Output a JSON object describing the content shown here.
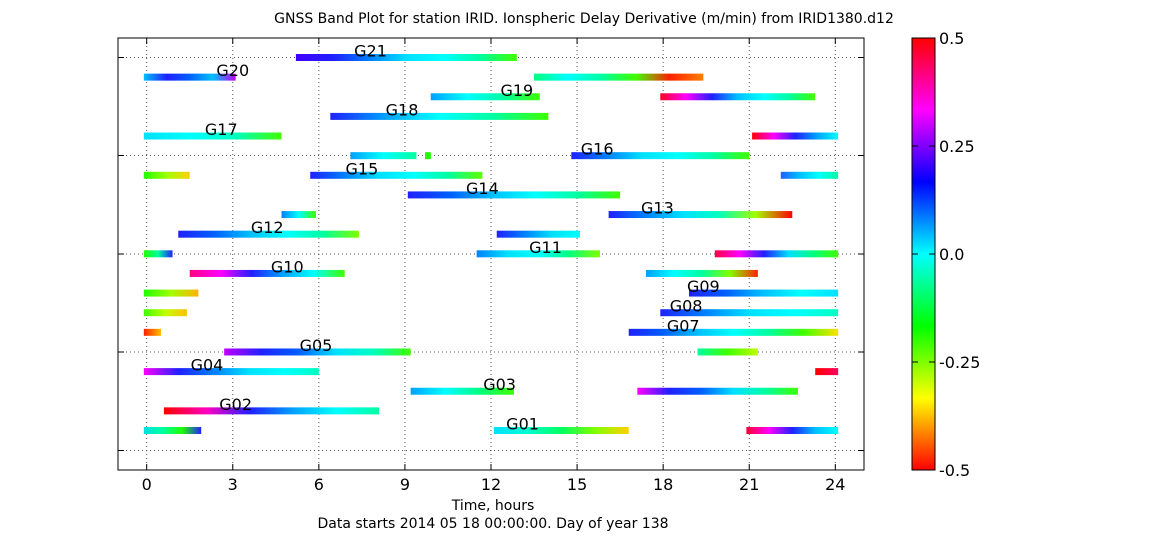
{
  "chart_data": {
    "type": "band",
    "title": "GNSS Band Plot for station IRID.   Ionspheric Delay Derivative (m/min) from IRID1380.d12",
    "xlabel": "Time, hours",
    "subtitle": "Data starts 2014 05 18 00:00:00.  Day of year 138",
    "xlim": [
      -1,
      25
    ],
    "xticks": [
      "0",
      "3",
      "6",
      "9",
      "12",
      "15",
      "18",
      "21",
      "24"
    ],
    "colorbar": {
      "range": [
        -0.5,
        0.5
      ],
      "ticks": [
        "0.5",
        "0.25",
        "0.0",
        "-0.25",
        "-0.5"
      ],
      "colormap": [
        "#ff0000",
        "#ffff00",
        "#00ff00",
        "#00ffff",
        "#0000ff",
        "#ff00ff",
        "#ff0000"
      ]
    },
    "satellites": [
      {
        "label": "G01",
        "label_at": 13.1,
        "passes": [
          {
            "start": -0.1,
            "end": 1.9,
            "colors": [
              "#00e0e0",
              "#00ffa0",
              "#20ff00",
              "#2020ff"
            ]
          },
          {
            "start": 12.1,
            "end": 16.8,
            "colors": [
              "#00e0ff",
              "#00ffd0",
              "#00ff60",
              "#80ff00",
              "#ffd000"
            ]
          },
          {
            "start": 20.9,
            "end": 24.1,
            "colors": [
              "#ff0030",
              "#ff00ff",
              "#2020ff",
              "#00c0ff",
              "#00ffff"
            ]
          }
        ]
      },
      {
        "label": "G02",
        "label_at": 3.1,
        "passes": [
          {
            "start": 0.6,
            "end": 8.1,
            "colors": [
              "#ff0000",
              "#ff00c0",
              "#2020ff",
              "#00a0ff",
              "#00ffff",
              "#00ffa0"
            ]
          }
        ]
      },
      {
        "label": "G03",
        "label_at": 12.3,
        "passes": [
          {
            "start": 9.2,
            "end": 12.8,
            "colors": [
              "#00a0ff",
              "#00ffff",
              "#00ff80",
              "#40ff00"
            ]
          },
          {
            "start": 17.1,
            "end": 22.7,
            "colors": [
              "#ff00ff",
              "#2020ff",
              "#0060ff",
              "#00e0ff",
              "#00ffa0",
              "#40ff00"
            ]
          }
        ]
      },
      {
        "label": "G04",
        "label_at": 2.1,
        "passes": [
          {
            "start": -0.1,
            "end": 6.0,
            "colors": [
              "#ff00ff",
              "#2020ff",
              "#0080ff",
              "#00e0ff",
              "#00ffff",
              "#00ffc0"
            ]
          },
          {
            "start": 23.3,
            "end": 24.1,
            "colors": [
              "#ff0000",
              "#ff0060"
            ]
          }
        ]
      },
      {
        "label": "G05",
        "label_at": 5.9,
        "passes": [
          {
            "start": 2.7,
            "end": 9.2,
            "colors": [
              "#c000ff",
              "#2020ff",
              "#0060ff",
              "#00e0ff",
              "#00ffc0",
              "#40ff00"
            ]
          },
          {
            "start": 19.2,
            "end": 21.3,
            "colors": [
              "#00ffa0",
              "#40ff00",
              "#c0ff00"
            ]
          }
        ]
      },
      {
        "label": "G07",
        "label_at": 18.7,
        "passes": [
          {
            "start": -0.1,
            "end": 0.5,
            "colors": [
              "#ff2000",
              "#ffc000"
            ]
          },
          {
            "start": 16.8,
            "end": 24.1,
            "colors": [
              "#2020ff",
              "#0060ff",
              "#00c0ff",
              "#00ffff",
              "#00ffa0",
              "#40ff00",
              "#ffe000"
            ]
          }
        ]
      },
      {
        "label": "G08",
        "label_at": 18.8,
        "passes": [
          {
            "start": -0.1,
            "end": 1.4,
            "colors": [
              "#40ff00",
              "#c0ff00",
              "#ffc000"
            ]
          },
          {
            "start": 17.9,
            "end": 24.1,
            "colors": [
              "#2020ff",
              "#0080ff",
              "#00e0ff",
              "#00ffff",
              "#00ffc0"
            ]
          }
        ]
      },
      {
        "label": "G09",
        "label_at": 19.4,
        "passes": [
          {
            "start": -0.1,
            "end": 1.8,
            "colors": [
              "#20ff00",
              "#a0ff00",
              "#ffb000"
            ]
          },
          {
            "start": 18.9,
            "end": 24.1,
            "colors": [
              "#2020ff",
              "#0060ff",
              "#00c0ff",
              "#00ffff",
              "#00e0ff"
            ]
          }
        ]
      },
      {
        "label": "G10",
        "label_at": 4.9,
        "passes": [
          {
            "start": 1.5,
            "end": 6.9,
            "colors": [
              "#ff0080",
              "#ff00ff",
              "#2020ff",
              "#00a0ff",
              "#00ffff",
              "#40ff00"
            ]
          },
          {
            "start": 17.4,
            "end": 21.3,
            "colors": [
              "#00a0ff",
              "#00ffff",
              "#00ffa0",
              "#80ff00",
              "#ff2000"
            ]
          }
        ]
      },
      {
        "label": "G11",
        "label_at": 13.9,
        "passes": [
          {
            "start": -0.1,
            "end": 0.9,
            "colors": [
              "#20ff00",
              "#00ffa0",
              "#2020ff"
            ]
          },
          {
            "start": 11.5,
            "end": 15.8,
            "colors": [
              "#0080ff",
              "#00e0ff",
              "#00ffff",
              "#00ff80",
              "#80ff00"
            ]
          },
          {
            "start": 19.8,
            "end": 24.1,
            "colors": [
              "#ff0040",
              "#ff00ff",
              "#2020ff",
              "#00e0ff",
              "#00ff80",
              "#40ff00"
            ]
          }
        ]
      },
      {
        "label": "G12",
        "label_at": 4.2,
        "passes": [
          {
            "start": 1.1,
            "end": 7.4,
            "colors": [
              "#2020ff",
              "#0060ff",
              "#00c0ff",
              "#00ffff",
              "#00ffa0",
              "#80ff00"
            ]
          },
          {
            "start": 12.2,
            "end": 15.1,
            "colors": [
              "#2020ff",
              "#0080ff",
              "#00e0ff",
              "#00ffff"
            ]
          }
        ]
      },
      {
        "label": "G13",
        "label_at": 17.8,
        "passes": [
          {
            "start": 4.7,
            "end": 5.9,
            "colors": [
              "#0080ff",
              "#00ffff",
              "#40ff00"
            ]
          },
          {
            "start": 16.1,
            "end": 22.5,
            "colors": [
              "#2020ff",
              "#0080ff",
              "#00e0ff",
              "#00ffc0",
              "#a0ff00",
              "#ff0000"
            ]
          }
        ]
      },
      {
        "label": "G14",
        "label_at": 11.7,
        "passes": [
          {
            "start": 9.1,
            "end": 16.5,
            "colors": [
              "#2020ff",
              "#0060ff",
              "#00c0ff",
              "#00ffff",
              "#00ffa0",
              "#40ff00"
            ]
          }
        ]
      },
      {
        "label": "G15",
        "label_at": 7.5,
        "passes": [
          {
            "start": -0.1,
            "end": 1.5,
            "colors": [
              "#20ff00",
              "#a0ff00",
              "#ffd000"
            ]
          },
          {
            "start": 5.7,
            "end": 11.7,
            "colors": [
              "#2020ff",
              "#0080ff",
              "#00e0ff",
              "#00ffff",
              "#00ffa0",
              "#60ff00"
            ]
          },
          {
            "start": 22.1,
            "end": 24.1,
            "colors": [
              "#2060ff",
              "#00c0ff",
              "#00ffff",
              "#00ffa0"
            ]
          }
        ]
      },
      {
        "label": "G16",
        "label_at": 15.7,
        "passes": [
          {
            "start": 7.1,
            "end": 9.4,
            "colors": [
              "#00a0ff",
              "#00ffff",
              "#00ffa0"
            ]
          },
          {
            "start": 9.7,
            "end": 9.9,
            "colors": [
              "#20ff00"
            ]
          },
          {
            "start": 14.8,
            "end": 21.0,
            "colors": [
              "#2020ff",
              "#0080ff",
              "#00e0ff",
              "#00ffff",
              "#00ffa0",
              "#40ff00"
            ]
          }
        ]
      },
      {
        "label": "G17",
        "label_at": 2.6,
        "passes": [
          {
            "start": -0.1,
            "end": 4.7,
            "colors": [
              "#00e0ff",
              "#00ffff",
              "#00ffc0",
              "#40ff00"
            ]
          },
          {
            "start": 21.1,
            "end": 24.1,
            "colors": [
              "#ff0000",
              "#ff00ff",
              "#2020ff",
              "#00a0ff",
              "#00ffff"
            ]
          }
        ]
      },
      {
        "label": "G18",
        "label_at": 8.9,
        "passes": [
          {
            "start": 6.4,
            "end": 14.0,
            "colors": [
              "#2020ff",
              "#00a0ff",
              "#00ffff",
              "#00ffa0",
              "#40ff00"
            ]
          }
        ]
      },
      {
        "label": "G19",
        "label_at": 12.9,
        "passes": [
          {
            "start": 9.9,
            "end": 13.7,
            "colors": [
              "#00a0ff",
              "#00ffff",
              "#00ffa0",
              "#40ff00"
            ]
          },
          {
            "start": 17.9,
            "end": 23.3,
            "colors": [
              "#ff0020",
              "#ff00ff",
              "#2020ff",
              "#00c0ff",
              "#00ffff",
              "#00ffa0",
              "#40ff00"
            ]
          }
        ]
      },
      {
        "label": "G20",
        "label_at": 3.0,
        "passes": [
          {
            "start": -0.1,
            "end": 3.1,
            "colors": [
              "#00c0ff",
              "#2020ff",
              "#0060ff",
              "#00c0ff",
              "#c000ff"
            ]
          },
          {
            "start": 13.5,
            "end": 19.4,
            "colors": [
              "#00ff80",
              "#00ffff",
              "#00ffa0",
              "#40ff00",
              "#ff2000",
              "#ff8000"
            ]
          }
        ]
      },
      {
        "label": "G21",
        "label_at": 7.8,
        "passes": [
          {
            "start": 5.2,
            "end": 12.9,
            "colors": [
              "#4000ff",
              "#2020ff",
              "#0080ff",
              "#00e0ff",
              "#00ffff",
              "#00ffa0",
              "#40ff00"
            ]
          }
        ]
      }
    ]
  }
}
